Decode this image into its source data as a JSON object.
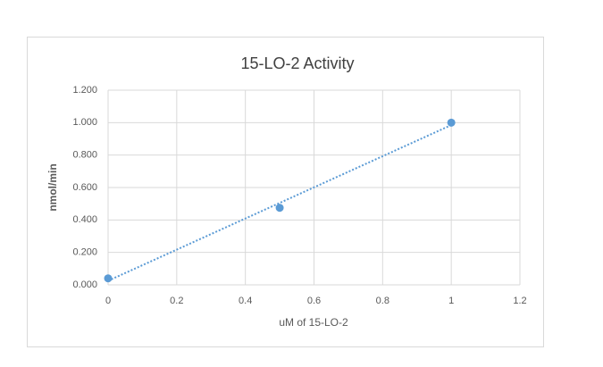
{
  "chart_data": {
    "type": "scatter",
    "title": "15-LO-2 Activity",
    "x_label": "uM of 15-LO-2",
    "y_label": "nmol/min",
    "x": [
      0,
      0.5,
      1
    ],
    "values": [
      0.04,
      0.475,
      1.0
    ],
    "color": "#5b9bd5",
    "trendline": "linear",
    "xlim": [
      0,
      1.2
    ],
    "xticks": [
      0,
      0.2,
      0.4,
      0.6,
      0.8,
      1,
      1.2
    ],
    "ylim": [
      0,
      1.2
    ],
    "yticks": [
      {
        "value": 0,
        "label": "0.000"
      },
      {
        "value": 0.2,
        "label": "0.200"
      },
      {
        "value": 0.4,
        "label": "0.400"
      },
      {
        "value": 0.6,
        "label": "0.600"
      },
      {
        "value": 0.8,
        "label": "0.800"
      },
      {
        "value": 1.0,
        "label": "1.000"
      },
      {
        "value": 1.2,
        "label": "1.200"
      }
    ],
    "grid": true
  }
}
